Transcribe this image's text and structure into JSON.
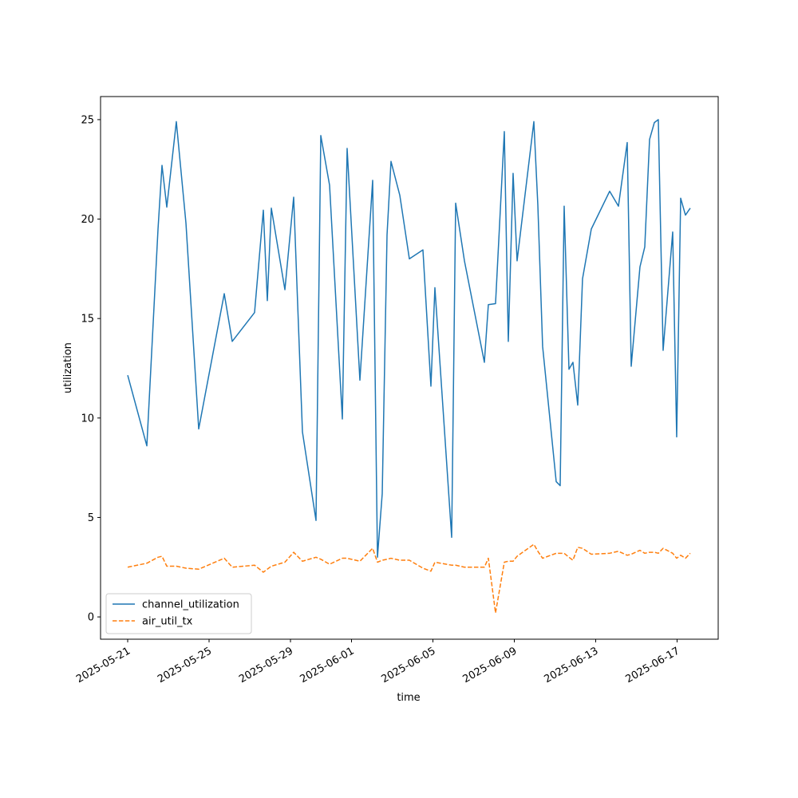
{
  "chart_data": {
    "type": "line",
    "xlabel": "time",
    "ylabel": "utilization",
    "x": [
      "2025-05-21T00:00",
      "2025-05-21T22:35",
      "2025-05-22T11:46",
      "2025-05-22T16:28",
      "2025-05-22T22:07",
      "2025-05-23T09:22",
      "2025-05-23T20:43",
      "2025-05-24T11:46",
      "2025-05-25T17:53",
      "2025-05-26T03:18",
      "2025-05-27T05:38",
      "2025-05-27T16:00",
      "2025-05-27T20:42",
      "2025-05-28T01:25",
      "2025-05-28T17:25",
      "2025-05-29T03:46",
      "2025-05-29T14:07",
      "2025-05-30T06:07",
      "2025-05-30T11:46",
      "2025-05-30T22:07",
      "2025-05-31T13:11",
      "2025-05-31T18:49",
      "2025-06-01T09:53",
      "2025-06-02T00:56",
      "2025-06-02T06:36",
      "2025-06-02T12:14",
      "2025-06-02T17:53",
      "2025-06-02T22:35",
      "2025-06-03T08:57",
      "2025-06-03T20:14",
      "2025-06-04T12:14",
      "2025-06-04T21:39",
      "2025-06-05T02:21",
      "2025-06-05T22:07",
      "2025-06-06T02:50",
      "2025-06-06T13:11",
      "2025-06-07T12:42",
      "2025-06-07T17:24",
      "2025-06-08T01:52",
      "2025-06-08T12:14",
      "2025-06-08T16:56",
      "2025-06-08T22:35",
      "2025-06-09T03:17",
      "2025-06-09T23:04",
      "2025-06-10T03:46",
      "2025-06-10T09:24",
      "2025-06-11T01:25",
      "2025-06-11T06:07",
      "2025-06-11T10:49",
      "2025-06-11T16:28",
      "2025-06-11T21:10",
      "2025-06-12T02:50",
      "2025-06-12T08:28",
      "2025-06-12T18:49",
      "2025-06-13T16:28",
      "2025-06-14T02:50",
      "2025-06-14T13:11",
      "2025-06-14T17:53",
      "2025-06-15T04:14",
      "2025-06-15T09:53",
      "2025-06-15T15:32",
      "2025-06-15T21:10",
      "2025-06-16T01:52",
      "2025-06-16T07:32",
      "2025-06-16T18:49",
      "2025-06-16T23:31",
      "2025-06-17T04:14",
      "2025-06-17T09:53",
      "2025-06-17T15:32"
    ],
    "series": [
      {
        "name": "channel_utilization",
        "color": "#1f77b4",
        "linestyle": "solid",
        "values": [
          12.15,
          8.6,
          19.5,
          22.7,
          20.6,
          24.9,
          19.8,
          9.45,
          16.25,
          13.85,
          15.3,
          20.45,
          15.9,
          20.55,
          16.45,
          21.1,
          9.3,
          4.85,
          24.2,
          21.7,
          9.95,
          23.55,
          11.9,
          21.95,
          3.0,
          6.2,
          19.2,
          22.9,
          21.2,
          18.0,
          18.45,
          11.6,
          16.55,
          4.0,
          20.8,
          17.9,
          12.8,
          15.7,
          15.75,
          24.4,
          13.85,
          22.3,
          17.9,
          24.9,
          20.7,
          13.6,
          6.8,
          6.6,
          20.65,
          12.45,
          12.8,
          10.65,
          17.0,
          19.5,
          21.4,
          20.65,
          23.85,
          12.6,
          17.6,
          18.6,
          24.0,
          24.85,
          25.0,
          13.4,
          19.35,
          9.05,
          21.05,
          20.2,
          20.55
        ]
      },
      {
        "name": "air_util_tx",
        "color": "#ff7f0e",
        "linestyle": "dashed",
        "values": [
          2.5,
          2.7,
          3.0,
          3.05,
          2.55,
          2.55,
          2.45,
          2.4,
          2.95,
          2.5,
          2.6,
          2.25,
          2.4,
          2.55,
          2.75,
          3.25,
          2.8,
          3.0,
          2.9,
          2.65,
          2.95,
          2.95,
          2.8,
          3.45,
          2.75,
          2.85,
          2.9,
          2.95,
          2.85,
          2.85,
          2.45,
          2.3,
          2.75,
          2.6,
          2.6,
          2.5,
          2.5,
          2.95,
          0.2,
          2.75,
          2.8,
          2.8,
          3.05,
          3.65,
          3.3,
          2.95,
          3.2,
          3.2,
          3.2,
          3.0,
          2.85,
          3.5,
          3.45,
          3.15,
          3.2,
          3.3,
          3.1,
          3.15,
          3.35,
          3.2,
          3.25,
          3.25,
          3.2,
          3.45,
          3.2,
          2.95,
          3.1,
          2.95,
          3.2
        ]
      }
    ],
    "xlim": [
      "2025-05-19T15:59",
      "2025-06-19T00:30"
    ],
    "xticks": [
      "2025-05-21",
      "2025-05-25",
      "2025-05-29",
      "2025-06-01",
      "2025-06-05",
      "2025-06-09",
      "2025-06-13",
      "2025-06-17"
    ],
    "ylim": [
      -1.12,
      26.16
    ],
    "yticks": [
      0,
      5,
      10,
      15,
      20,
      25
    ],
    "grid": false,
    "legend": "lower left"
  }
}
